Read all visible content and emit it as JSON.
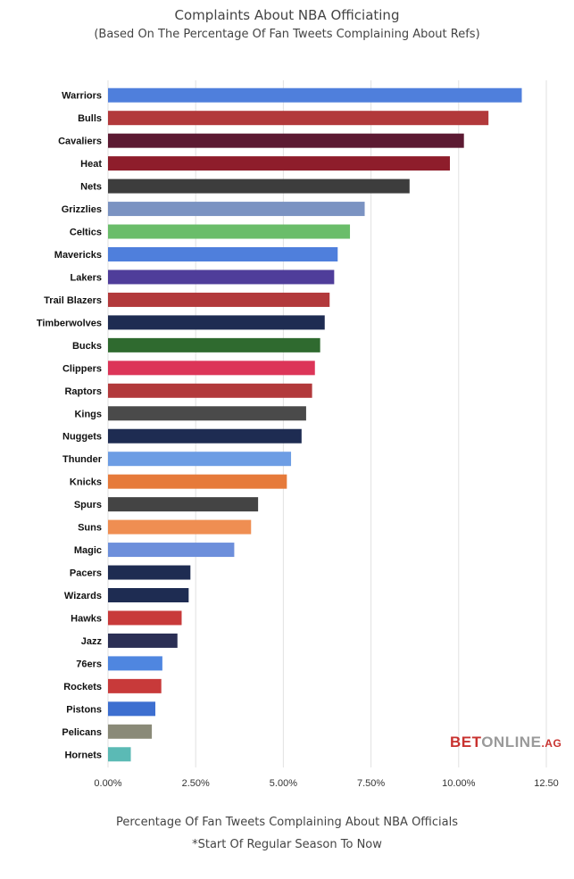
{
  "chart_data": {
    "type": "bar",
    "orientation": "horizontal",
    "title": "Complaints About NBA Officiating",
    "subtitle": "(Based On The Percentage Of Fan Tweets Complaining About Refs)",
    "xlabel": "Percentage Of Fan Tweets Complaining About NBA Officials",
    "note": "*Start Of Regular Season To Now",
    "xlim": [
      0,
      12.5
    ],
    "xticks": [
      "0.00%",
      "2.50%",
      "5.00%",
      "7.50%",
      "10.00%",
      "12.50"
    ],
    "grid": true,
    "categories": [
      "Warriors",
      "Bulls",
      "Cavaliers",
      "Heat",
      "Nets",
      "Grizzlies",
      "Celtics",
      "Mavericks",
      "Lakers",
      "Trail Blazers",
      "Timberwolves",
      "Bucks",
      "Clippers",
      "Raptors",
      "Kings",
      "Nuggets",
      "Thunder",
      "Knicks",
      "Spurs",
      "Suns",
      "Magic",
      "Pacers",
      "Wizards",
      "Hawks",
      "Jazz",
      "76ers",
      "Rockets",
      "Pistons",
      "Pelicans",
      "Hornets"
    ],
    "values": [
      11.8,
      10.85,
      10.15,
      9.75,
      8.6,
      7.32,
      6.9,
      6.55,
      6.45,
      6.32,
      6.18,
      6.05,
      5.9,
      5.82,
      5.65,
      5.52,
      5.22,
      5.1,
      4.28,
      4.08,
      3.6,
      2.35,
      2.3,
      2.1,
      1.98,
      1.55,
      1.52,
      1.35,
      1.25,
      0.65
    ],
    "colors": [
      "#4f7fdc",
      "#b2393b",
      "#5c1a32",
      "#8e1d2b",
      "#3d3d3d",
      "#7b93c2",
      "#6abd6a",
      "#4f7fdc",
      "#4f3d9a",
      "#b2393b",
      "#1e2c52",
      "#2f6a2f",
      "#dc3558",
      "#b2393b",
      "#4a4a4a",
      "#1e2c52",
      "#6d9de4",
      "#e67a3a",
      "#444444",
      "#ef8e52",
      "#6d8fdb",
      "#1e2c52",
      "#1e2c52",
      "#c83a3a",
      "#2b2f55",
      "#4f86e0",
      "#c83a3a",
      "#3d6fd0",
      "#8a8a78",
      "#5bbab5"
    ]
  },
  "brand": {
    "bet": "BET",
    "online": "ONLINE",
    "suffix": ".AG"
  }
}
